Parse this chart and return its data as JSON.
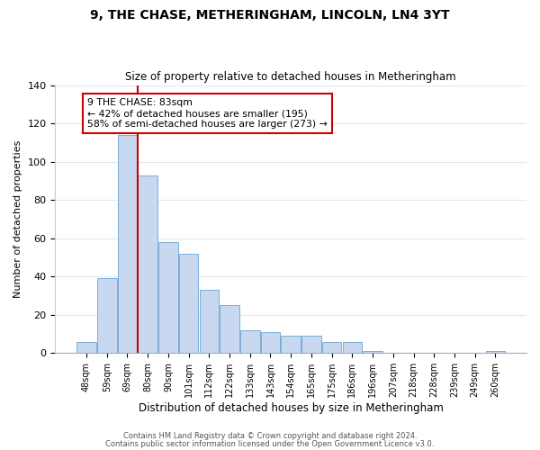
{
  "title": "9, THE CHASE, METHERINGHAM, LINCOLN, LN4 3YT",
  "subtitle": "Size of property relative to detached houses in Metheringham",
  "xlabel": "Distribution of detached houses by size in Metheringham",
  "ylabel": "Number of detached properties",
  "bar_labels": [
    "48sqm",
    "59sqm",
    "69sqm",
    "80sqm",
    "90sqm",
    "101sqm",
    "112sqm",
    "122sqm",
    "133sqm",
    "143sqm",
    "154sqm",
    "165sqm",
    "175sqm",
    "186sqm",
    "196sqm",
    "207sqm",
    "218sqm",
    "228sqm",
    "239sqm",
    "249sqm",
    "260sqm"
  ],
  "bar_values": [
    6,
    39,
    114,
    93,
    58,
    52,
    33,
    25,
    12,
    11,
    9,
    9,
    6,
    6,
    1,
    0,
    0,
    0,
    0,
    0,
    1
  ],
  "bar_color": "#c8d8f0",
  "bar_edge_color": "#7bafd4",
  "ylim": [
    0,
    140
  ],
  "annotation_box_text": "9 THE CHASE: 83sqm\n← 42% of detached houses are smaller (195)\n58% of semi-detached houses are larger (273) →",
  "footer_line1": "Contains HM Land Registry data © Crown copyright and database right 2024.",
  "footer_line2": "Contains public sector information licensed under the Open Government Licence v3.0.",
  "vline_color": "#cc0000",
  "annotation_box_edge_color": "#cc0000",
  "background_color": "#ffffff",
  "grid_color": "#dce9f5"
}
